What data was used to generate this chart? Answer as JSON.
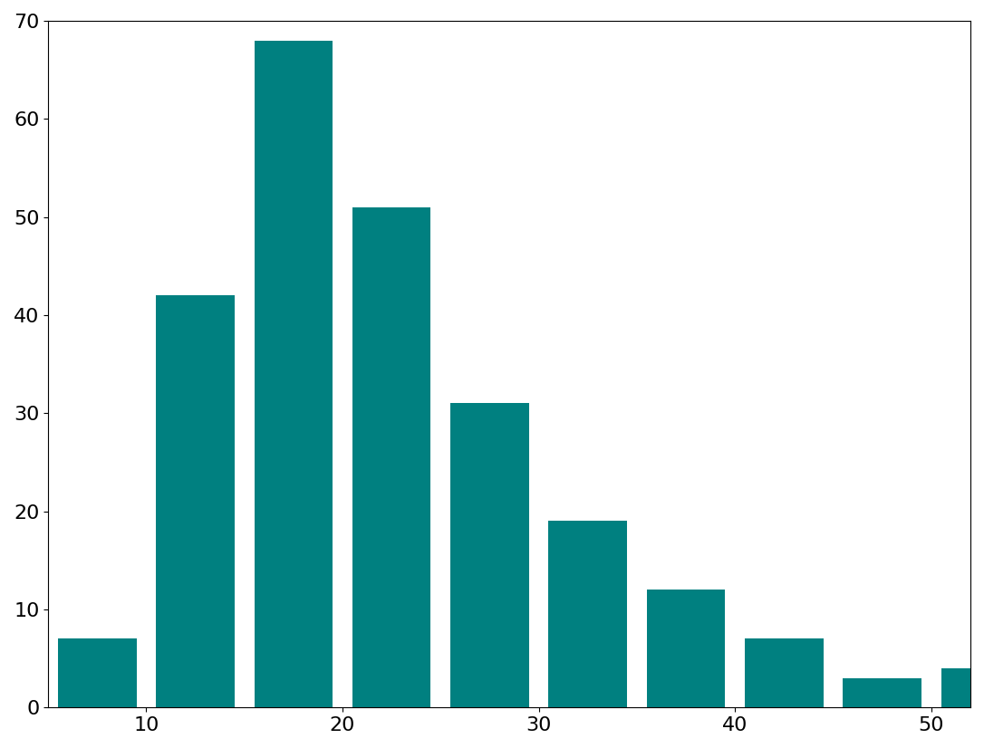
{
  "bin_edges": [
    5,
    10,
    15,
    20,
    25,
    30,
    35,
    40,
    45,
    50,
    55
  ],
  "counts": [
    7,
    42,
    68,
    51,
    31,
    19,
    12,
    7,
    3,
    4
  ],
  "bar_color": "#008080",
  "rwidth": 0.8,
  "ylim": [
    0,
    70
  ],
  "xlim": [
    5,
    52
  ],
  "xticks": [
    10,
    20,
    30,
    40,
    50
  ],
  "yticks": [
    0,
    10,
    20,
    30,
    40,
    50,
    60,
    70
  ],
  "tick_labelsize": 16,
  "background_color": "#ffffff",
  "edgecolor": "none"
}
